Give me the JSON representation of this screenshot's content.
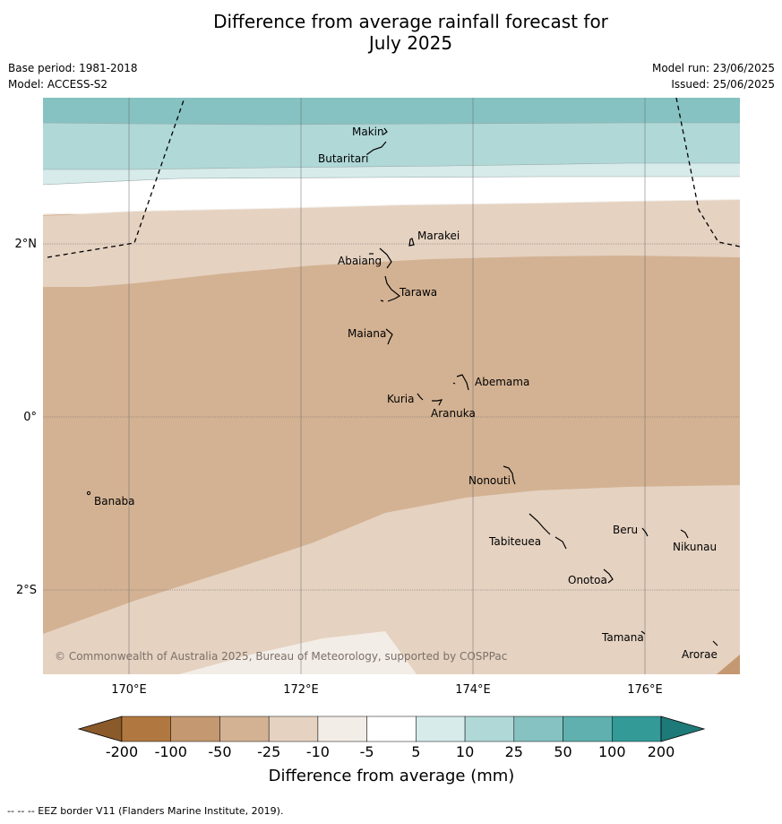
{
  "title": {
    "line1": "Difference from average rainfall forecast for",
    "line2": "July 2025"
  },
  "meta": {
    "base_period": "Base period: 1981-2018",
    "model": "Model: ACCESS-S2",
    "model_run": "Model run: 23/06/2025",
    "issued": "Issued: 25/06/2025"
  },
  "map": {
    "lon_ticks": [
      "170°E",
      "172°E",
      "174°E",
      "176°E"
    ],
    "lat_ticks": [
      "2°N",
      "0°",
      "2°S"
    ],
    "copyright": "© Commonwealth of Australia 2025, Bureau of Meteorology, supported by COSPPac",
    "places": [
      {
        "name": "Makin",
        "lon": 173.0,
        "lat": 3.4
      },
      {
        "name": "Butaritari",
        "lon": 172.8,
        "lat": 3.1
      },
      {
        "name": "Marakei",
        "lon": 173.3,
        "lat": 2.0
      },
      {
        "name": "Abaiang",
        "lon": 173.0,
        "lat": 1.8
      },
      {
        "name": "Tarawa",
        "lon": 173.0,
        "lat": 1.4
      },
      {
        "name": "Maiana",
        "lon": 173.0,
        "lat": 0.95
      },
      {
        "name": "Abemama",
        "lon": 173.85,
        "lat": 0.4
      },
      {
        "name": "Kuria",
        "lon": 173.4,
        "lat": 0.22
      },
      {
        "name": "Aranuka",
        "lon": 173.6,
        "lat": 0.15
      },
      {
        "name": "Nonouti",
        "lon": 174.4,
        "lat": -0.65
      },
      {
        "name": "Banaba",
        "lon": 169.5,
        "lat": -0.85
      },
      {
        "name": "Tabiteuea",
        "lon": 174.8,
        "lat": -1.35
      },
      {
        "name": "Beru",
        "lon": 176.0,
        "lat": -1.35
      },
      {
        "name": "Nikunau",
        "lon": 176.45,
        "lat": -1.35
      },
      {
        "name": "Onotoa",
        "lon": 175.55,
        "lat": -1.85
      },
      {
        "name": "Tamana",
        "lon": 175.98,
        "lat": -2.5
      },
      {
        "name": "Arorae",
        "lon": 176.82,
        "lat": -2.65
      }
    ]
  },
  "colorbar": {
    "ticks": [
      "-200",
      "-100",
      "-50",
      "-25",
      "-10",
      "-5",
      "5",
      "10",
      "25",
      "50",
      "100",
      "200"
    ],
    "colors": [
      "#8b5a2b",
      "#b07840",
      "#c49870",
      "#d3b293",
      "#e5d2c1",
      "#f3ede7",
      "#ffffff",
      "#d6ebea",
      "#afd8d7",
      "#85c2c1",
      "#5fb0ae",
      "#339a98",
      "#1e7a78"
    ],
    "label": "Difference from average (mm)"
  },
  "footer": "--  --  -- EEZ border V11 (Flanders Marine Institute, 2019)."
}
